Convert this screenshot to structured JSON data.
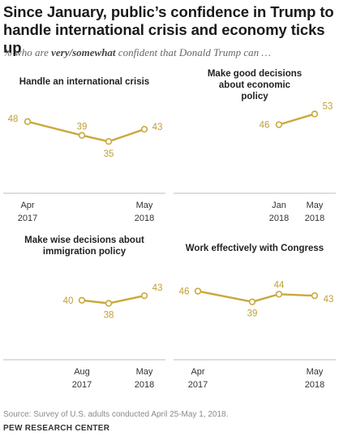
{
  "title": "Since January, public’s confidence in Trump to handle international crisis and economy ticks up",
  "subtitle_prefix": "% who are ",
  "subtitle_emph": "very/somewhat",
  "subtitle_suffix": " confident that Donald Trump can …",
  "source": "Source: Survey of U.S. adults conducted April 25-May 1, 2018.",
  "organization": "PEW RESEARCH CENTER",
  "colors": {
    "line": "#c9a83a",
    "label": "#c19e33",
    "axis": "#bdbdbd"
  },
  "chart_data": [
    {
      "type": "line",
      "title": "Handle an international crisis",
      "points": [
        {
          "date": "2017-04",
          "value": 48
        },
        {
          "date": "2017-08",
          "value": 39
        },
        {
          "date": "2018-01",
          "value": 35
        },
        {
          "date": "2018-05",
          "value": 43
        }
      ],
      "tick_labels": [
        {
          "date": "2017-04",
          "line1": "Apr",
          "line2": "2017"
        },
        {
          "date": "2018-05",
          "line1": "May",
          "line2": "2018"
        }
      ]
    },
    {
      "type": "line",
      "title": "Make good decisions about economic policy",
      "points": [
        {
          "date": "2018-01",
          "value": 46
        },
        {
          "date": "2018-05",
          "value": 53
        }
      ],
      "tick_labels": [
        {
          "date": "2018-01",
          "line1": "Jan",
          "line2": "2018"
        },
        {
          "date": "2018-05",
          "line1": "May",
          "line2": "2018"
        }
      ]
    },
    {
      "type": "line",
      "title": "Make wise decisions about immigration policy",
      "points": [
        {
          "date": "2017-08",
          "value": 40
        },
        {
          "date": "2018-01",
          "value": 38
        },
        {
          "date": "2018-05",
          "value": 43
        }
      ],
      "tick_labels": [
        {
          "date": "2017-08",
          "line1": "Aug",
          "line2": "2017"
        },
        {
          "date": "2018-05",
          "line1": "May",
          "line2": "2018"
        }
      ]
    },
    {
      "type": "line",
      "title": "Work effectively with Congress",
      "points": [
        {
          "date": "2017-04",
          "value": 46
        },
        {
          "date": "2017-08",
          "value": 39
        },
        {
          "date": "2018-01",
          "value": 44
        },
        {
          "date": "2018-05",
          "value": 43
        }
      ],
      "tick_labels": [
        {
          "date": "2017-04",
          "line1": "Apr",
          "line2": "2017"
        },
        {
          "date": "2018-05",
          "line1": "May",
          "line2": "2018"
        }
      ]
    }
  ]
}
